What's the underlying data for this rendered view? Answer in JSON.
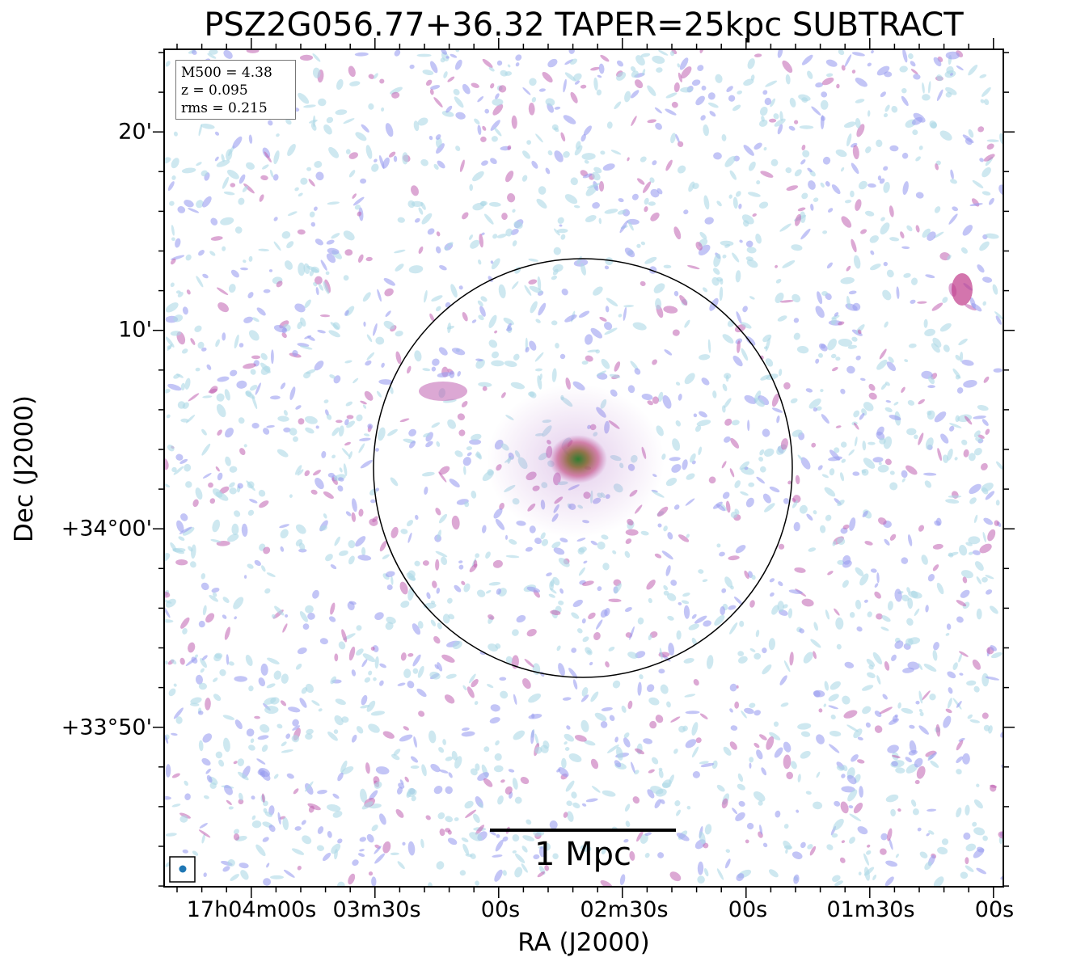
{
  "figure": {
    "title": "PSZ2G056.77+36.32 TAPER=25kpc SUBTRACT",
    "xlabel": "RA (J2000)",
    "ylabel": "Dec (J2000)",
    "x_ticks": [
      "17h04m00s",
      "03m30s",
      "00s",
      "02m30s",
      "00s",
      "01m30s",
      "00s"
    ],
    "y_ticks": [
      "20'",
      "10'",
      "+34°00'",
      "+33°50'"
    ],
    "info": {
      "mass": "M500 = 4.38",
      "redshift": "z = 0.095",
      "rms": "rms = 0.215"
    },
    "scalebar_label": "1 Mpc"
  },
  "colors": {
    "noise_light": "#add8e6",
    "noise_mid": "#9b9ff0",
    "noise_strong": "#c060b0",
    "source_core": "#2e7d32",
    "beam": "#1f77b4",
    "frame": "#000000"
  }
}
